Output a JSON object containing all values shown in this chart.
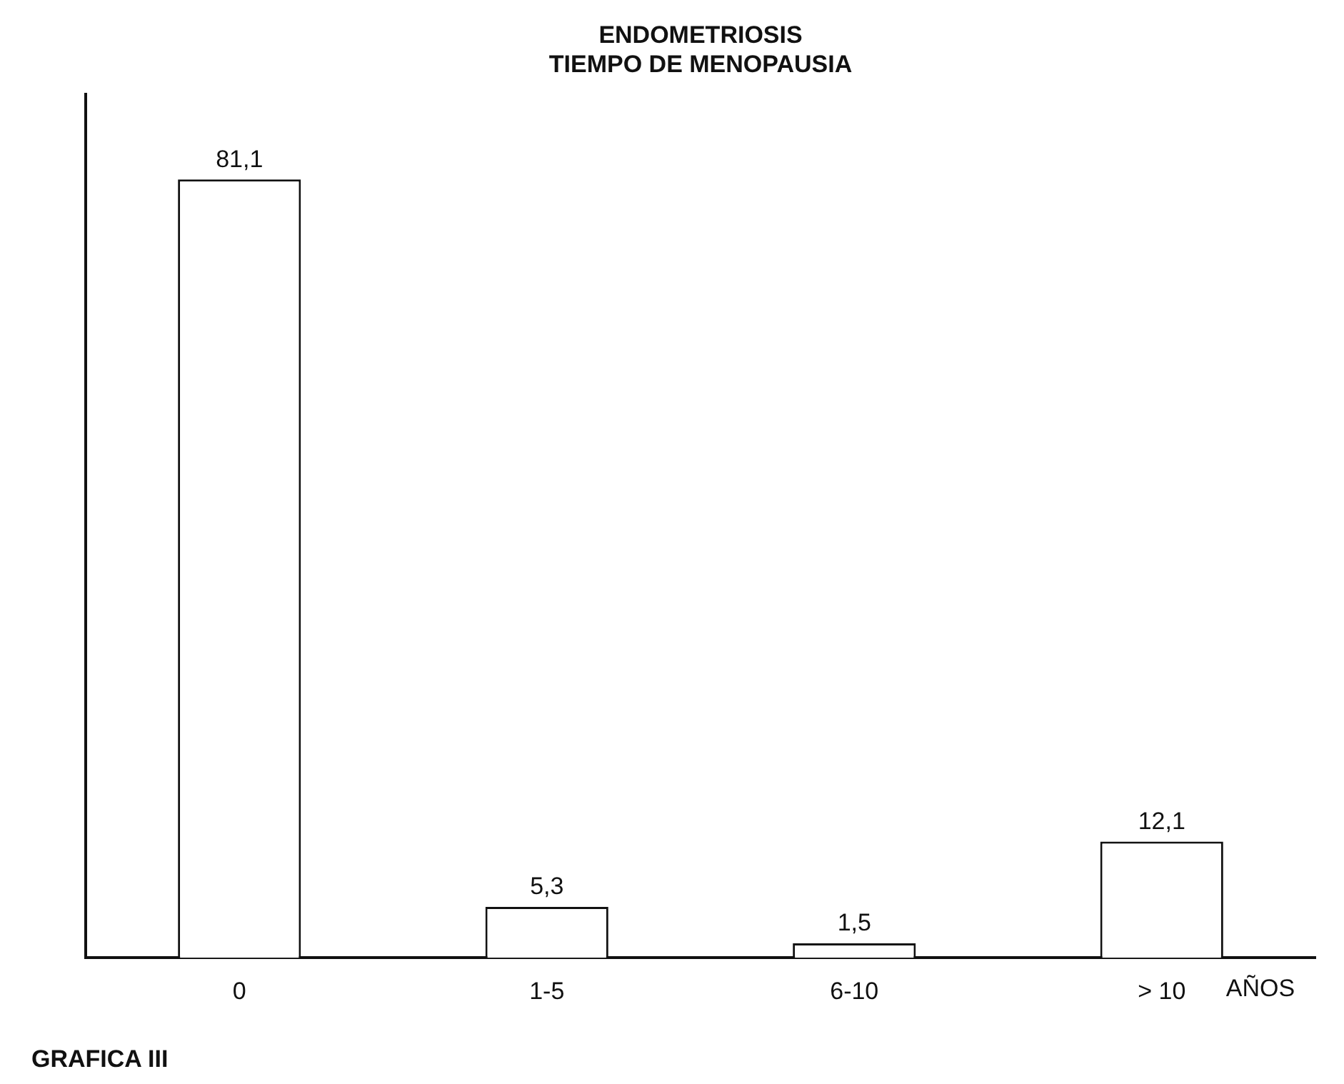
{
  "chart_data": {
    "type": "bar",
    "title": "ENDOMETRIOSIS",
    "subtitle": "TIEMPO DE MENOPAUSIA",
    "xlabel": "AÑOS",
    "categories": [
      "0",
      "1-5",
      "6-10",
      "> 10"
    ],
    "values": [
      81.1,
      5.3,
      1.5,
      12.1
    ],
    "value_labels": [
      "81,1",
      "5,3",
      "1,5",
      "12,1"
    ],
    "color": "#ffffff",
    "annotations": [
      "GRAFICA III"
    ],
    "tick_labels": "x",
    "grid": false,
    "legend": false
  }
}
